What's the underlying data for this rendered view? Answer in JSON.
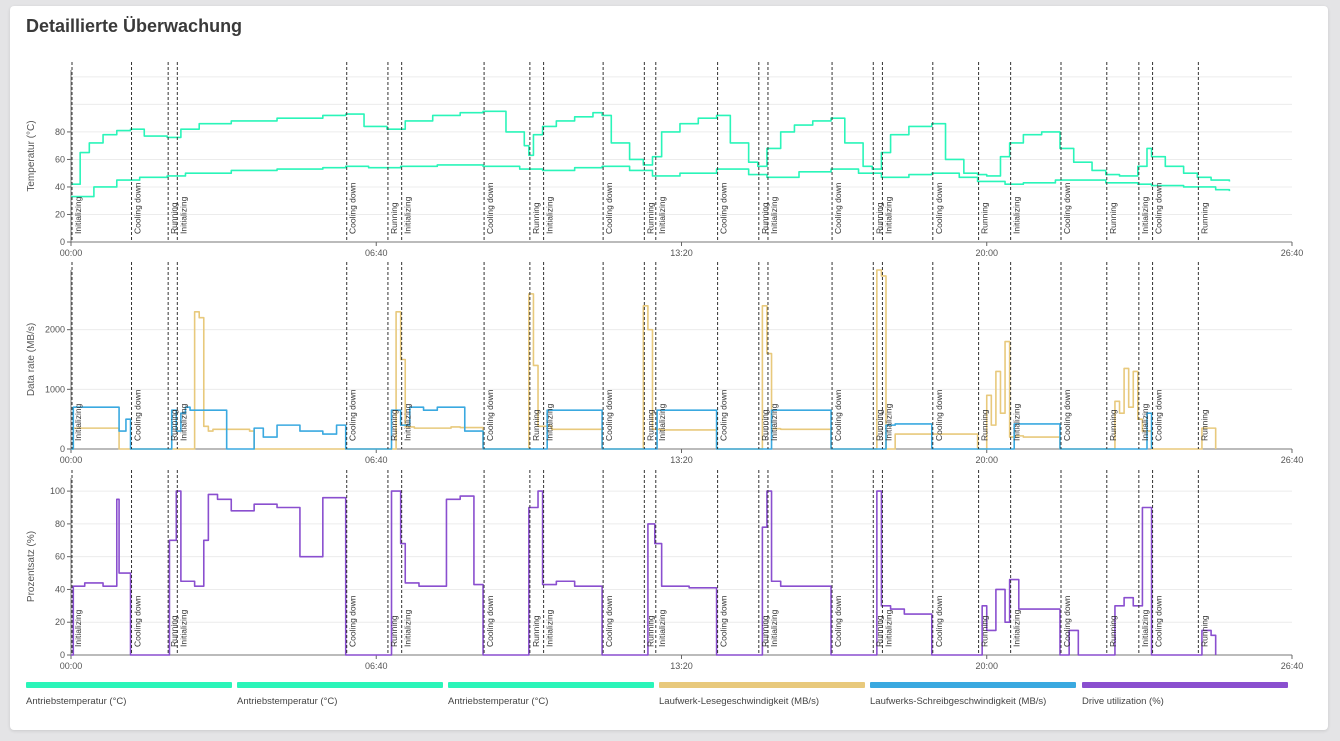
{
  "title": "Detaillierte Überwachung",
  "colors": {
    "temp": "#2af5b9",
    "read": "#e8c97c",
    "write": "#3aa9e0",
    "util": "#8a4fcf",
    "grid": "#ececec",
    "marker": "#333333"
  },
  "x_ticks": [
    "00:00",
    "06:40",
    "13:20",
    "20:00",
    "26:40"
  ],
  "events": [
    {
      "t": 0.0,
      "label": "Initializing"
    },
    {
      "t": 1.3,
      "label": "Cooling down"
    },
    {
      "t": 2.1,
      "label": "Running"
    },
    {
      "t": 2.3,
      "label": "Initializing"
    },
    {
      "t": 6.0,
      "label": "Cooling down"
    },
    {
      "t": 6.9,
      "label": "Running"
    },
    {
      "t": 7.2,
      "label": "Initializing"
    },
    {
      "t": 9.0,
      "label": "Cooling down"
    },
    {
      "t": 10.0,
      "label": "Running"
    },
    {
      "t": 10.3,
      "label": "Initializing"
    },
    {
      "t": 11.6,
      "label": "Cooling down"
    },
    {
      "t": 12.5,
      "label": "Running"
    },
    {
      "t": 12.75,
      "label": "Initializing"
    },
    {
      "t": 14.1,
      "label": "Cooling down"
    },
    {
      "t": 15.0,
      "label": "Running"
    },
    {
      "t": 15.2,
      "label": "Initializing"
    },
    {
      "t": 16.6,
      "label": "Cooling down"
    },
    {
      "t": 17.5,
      "label": "Running"
    },
    {
      "t": 17.7,
      "label": "Initializing"
    },
    {
      "t": 18.8,
      "label": "Cooling down"
    },
    {
      "t": 19.8,
      "label": "Running"
    },
    {
      "t": 20.5,
      "label": "Initializing"
    },
    {
      "t": 21.6,
      "label": "Cooling down"
    },
    {
      "t": 22.6,
      "label": "Running"
    },
    {
      "t": 23.3,
      "label": "Initializing"
    },
    {
      "t": 23.6,
      "label": "Cooling down"
    },
    {
      "t": 24.6,
      "label": "Running"
    }
  ],
  "chart_data": [
    {
      "type": "line",
      "ylabel": "Temperatur (°C)",
      "xlim_hours": [
        0,
        26.667
      ],
      "ylim": [
        0,
        125
      ],
      "y_ticks": [
        0,
        20,
        40,
        60,
        80
      ],
      "series": [
        {
          "name": "Antriebstemperatur (°C)",
          "color_key": "temp",
          "x": [
            0,
            0.2,
            0.4,
            0.7,
            1.0,
            1.3,
            1.6,
            2.1,
            2.4,
            2.8,
            3.5,
            4.5,
            5.5,
            6.0,
            6.4,
            6.9,
            7.3,
            7.9,
            8.5,
            9.0,
            9.5,
            9.9,
            10.0,
            10.1,
            10.3,
            10.6,
            11.0,
            11.4,
            11.6,
            11.8,
            12.2,
            12.5,
            12.7,
            12.9,
            13.3,
            13.7,
            14.1,
            14.4,
            14.8,
            15.0,
            15.2,
            15.5,
            15.8,
            16.2,
            16.6,
            16.9,
            17.3,
            17.5,
            17.7,
            17.9,
            18.3,
            18.8,
            19.1,
            19.5,
            19.8,
            20.0,
            20.3,
            20.5,
            20.8,
            21.2,
            21.6,
            21.9,
            22.3,
            22.6,
            22.9,
            23.3,
            23.5,
            23.6,
            23.9,
            24.3,
            24.6,
            24.9,
            25.3
          ],
          "y": [
            42,
            65,
            72,
            78,
            81,
            82,
            77,
            76,
            82,
            86,
            88,
            90,
            92,
            93,
            84,
            82,
            88,
            92,
            94,
            95,
            80,
            70,
            63,
            78,
            84,
            88,
            91,
            94,
            92,
            72,
            60,
            56,
            62,
            80,
            86,
            90,
            92,
            72,
            58,
            55,
            68,
            80,
            85,
            88,
            90,
            72,
            55,
            53,
            65,
            78,
            84,
            86,
            60,
            50,
            49,
            48,
            62,
            72,
            78,
            80,
            68,
            58,
            52,
            49,
            48,
            55,
            68,
            62,
            55,
            50,
            47,
            45,
            44
          ]
        },
        {
          "name": "Antriebstemperatur (°C)",
          "color_key": "temp",
          "x": [
            0,
            0.5,
            1.0,
            1.5,
            2.1,
            2.5,
            3.5,
            4.5,
            5.5,
            6.0,
            6.5,
            7.2,
            8.0,
            9.0,
            9.8,
            10.3,
            11.0,
            11.6,
            12.2,
            12.7,
            13.3,
            14.1,
            14.8,
            15.2,
            15.9,
            16.6,
            17.2,
            17.7,
            18.3,
            18.8,
            19.4,
            19.8,
            20.4,
            20.8,
            21.5,
            22.0,
            22.6,
            23.3,
            23.6,
            24.3,
            25.0,
            25.3
          ],
          "y": [
            33,
            40,
            45,
            47,
            48,
            50,
            52,
            53,
            54,
            55,
            54,
            55,
            56,
            55,
            53,
            52,
            54,
            55,
            52,
            48,
            50,
            53,
            49,
            47,
            51,
            53,
            50,
            47,
            49,
            50,
            47,
            44,
            42,
            43,
            45,
            45,
            43,
            42,
            41,
            40,
            38,
            37
          ]
        },
        {
          "name": "Antriebstemperatur (°C)",
          "color_key": "temp",
          "x": [],
          "y": []
        }
      ]
    },
    {
      "type": "line",
      "ylabel": "Data rate (MB/s)",
      "xlim_hours": [
        0,
        26.667
      ],
      "ylim": [
        0,
        3000
      ],
      "y_ticks": [
        0,
        1000,
        2000
      ],
      "series": [
        {
          "name": "Laufwerk-Lesegeschwindigkeit (MB/s)",
          "color_key": "read",
          "x": [
            0,
            0.05,
            0.3,
            1.0,
            1.05,
            1.3,
            2.6,
            2.7,
            2.8,
            2.9,
            3.0,
            3.1,
            3.9,
            4.0,
            6.0,
            7.0,
            7.1,
            7.2,
            7.3,
            7.5,
            8.3,
            8.5,
            9.0,
            9.9,
            10.0,
            10.1,
            10.2,
            10.5,
            11.6,
            12.4,
            12.5,
            12.6,
            12.7,
            12.9,
            14.1,
            15.0,
            15.1,
            15.2,
            15.3,
            15.5,
            16.6,
            17.5,
            17.6,
            17.7,
            17.8,
            18.0,
            18.8,
            19.8,
            20.0,
            20.1,
            20.2,
            20.3,
            20.4,
            20.5,
            20.6,
            20.8,
            21.6,
            22.6,
            22.8,
            22.9,
            23.0,
            23.1,
            23.2,
            23.3,
            23.4,
            23.6,
            24.6,
            24.7,
            24.9,
            25.0
          ],
          "y": [
            0,
            350,
            350,
            350,
            0,
            0,
            0,
            2300,
            2200,
            380,
            300,
            330,
            300,
            0,
            0,
            0,
            2300,
            1500,
            370,
            350,
            370,
            360,
            0,
            0,
            2600,
            1400,
            380,
            330,
            0,
            0,
            2400,
            2000,
            330,
            320,
            0,
            0,
            2400,
            1600,
            340,
            330,
            0,
            0,
            3000,
            2900,
            0,
            250,
            250,
            0,
            900,
            400,
            1300,
            600,
            1800,
            200,
            220,
            200,
            0,
            0,
            800,
            600,
            1350,
            700,
            1300,
            500,
            300,
            0,
            0,
            350,
            350,
            0
          ]
        },
        {
          "name": "Laufwerks-Schreibgeschwindigkeit (MB/s)",
          "color_key": "write",
          "x": [
            0,
            0.05,
            1.0,
            1.05,
            1.2,
            1.3,
            2.1,
            2.2,
            2.3,
            2.4,
            2.5,
            2.6,
            3.3,
            3.4,
            4.0,
            4.2,
            4.5,
            5.0,
            5.5,
            5.8,
            6.0,
            6.9,
            7.0,
            7.2,
            7.4,
            7.7,
            8.0,
            8.4,
            8.6,
            9.0,
            9.9,
            10.3,
            10.4,
            11.6,
            12.5,
            12.8,
            13.0,
            14.1,
            15.0,
            15.3,
            16.6,
            17.7,
            17.8,
            18.0,
            18.8,
            19.8,
            20.5,
            20.6,
            21.6,
            22.6,
            23.4,
            23.5,
            23.6
          ],
          "y": [
            0,
            700,
            700,
            300,
            500,
            0,
            0,
            650,
            300,
            600,
            700,
            650,
            650,
            0,
            350,
            200,
            400,
            300,
            250,
            400,
            0,
            0,
            650,
            400,
            700,
            650,
            700,
            700,
            300,
            0,
            0,
            0,
            650,
            0,
            0,
            650,
            650,
            0,
            0,
            650,
            0,
            0,
            400,
            420,
            0,
            0,
            0,
            420,
            0,
            0,
            0,
            600,
            0
          ]
        }
      ]
    },
    {
      "type": "line",
      "ylabel": "Prozentsatz (%)",
      "xlim_hours": [
        0,
        26.667
      ],
      "ylim": [
        0,
        108
      ],
      "y_ticks": [
        0,
        20,
        40,
        60,
        80,
        100
      ],
      "series": [
        {
          "name": "Drive utilization (%)",
          "color_key": "util",
          "x": [
            0,
            0.05,
            0.3,
            0.7,
            1.0,
            1.05,
            1.3,
            2.1,
            2.15,
            2.3,
            2.4,
            2.7,
            2.9,
            3.0,
            3.2,
            3.5,
            4.0,
            4.5,
            5.0,
            5.5,
            6.0,
            6.9,
            7.0,
            7.2,
            7.3,
            7.6,
            8.2,
            8.5,
            8.8,
            9.0,
            9.9,
            10.0,
            10.2,
            10.3,
            10.6,
            11.0,
            11.6,
            12.5,
            12.6,
            12.75,
            12.9,
            13.5,
            14.1,
            14.95,
            15.1,
            15.2,
            15.3,
            15.5,
            16.0,
            16.6,
            17.5,
            17.6,
            17.7,
            17.9,
            18.2,
            18.8,
            19.8,
            19.9,
            20.0,
            20.2,
            20.4,
            20.5,
            20.7,
            21.0,
            21.6,
            21.8,
            22.0,
            22.6,
            22.8,
            23.0,
            23.2,
            23.4,
            23.6,
            24.6,
            24.7,
            24.9,
            25.0
          ],
          "y": [
            0,
            42,
            44,
            42,
            95,
            50,
            0,
            0,
            70,
            100,
            45,
            42,
            70,
            98,
            95,
            88,
            92,
            90,
            60,
            96,
            0,
            0,
            100,
            68,
            44,
            42,
            95,
            97,
            43,
            0,
            0,
            90,
            100,
            43,
            45,
            42,
            0,
            0,
            80,
            68,
            42,
            41,
            0,
            0,
            78,
            100,
            45,
            42,
            42,
            0,
            0,
            100,
            30,
            28,
            25,
            0,
            0,
            30,
            15,
            40,
            20,
            46,
            28,
            28,
            0,
            15,
            0,
            0,
            30,
            35,
            30,
            90,
            0,
            0,
            15,
            12,
            0
          ]
        }
      ]
    }
  ],
  "legend": [
    {
      "label": "Antriebstemperatur (°C)",
      "color_key": "temp"
    },
    {
      "label": "Antriebstemperatur (°C)",
      "color_key": "temp"
    },
    {
      "label": "Antriebstemperatur (°C)",
      "color_key": "temp"
    },
    {
      "label": "Laufwerk-Lesegeschwindigkeit (MB/s)",
      "color_key": "read"
    },
    {
      "label": "Laufwerks-Schreibgeschwindigkeit (MB/s)",
      "color_key": "write"
    },
    {
      "label": "Drive utilization (%)",
      "color_key": "util"
    }
  ]
}
